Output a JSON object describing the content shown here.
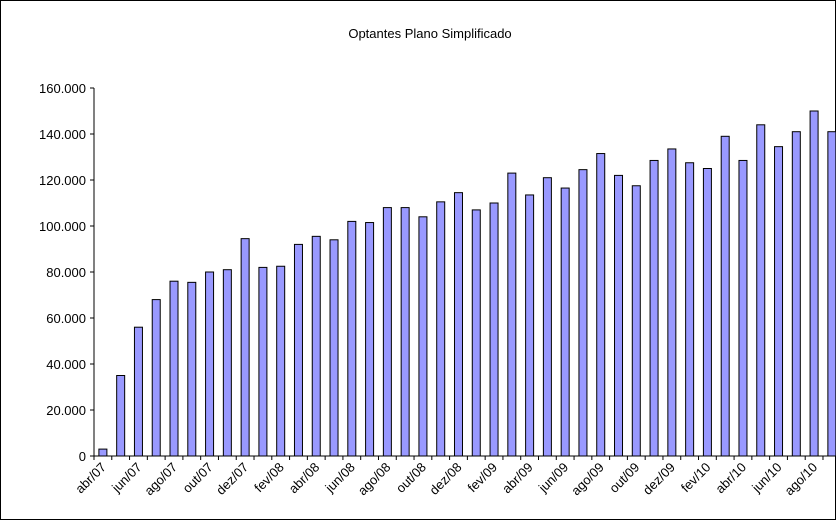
{
  "chart_data": {
    "type": "bar",
    "title": "Optantes Plano Simplificado",
    "categories": [
      "abr/07",
      null,
      "jun/07",
      null,
      "ago/07",
      null,
      "out/07",
      null,
      "dez/07",
      null,
      "fev/08",
      null,
      "abr/08",
      null,
      "jun/08",
      null,
      "ago/08",
      null,
      "out/08",
      null,
      "dez/08",
      null,
      "fev/09",
      null,
      "abr/09",
      null,
      "jun/09",
      null,
      "ago/09",
      null,
      "out/09",
      null,
      "dez/09",
      null,
      "fev/10",
      null,
      "abr/10",
      null,
      "jun/10",
      null,
      "ago/10",
      null
    ],
    "values": [
      3000,
      35000,
      56000,
      68000,
      76000,
      75500,
      80000,
      81000,
      94500,
      82000,
      82500,
      92000,
      95500,
      94000,
      102000,
      101500,
      108000,
      108000,
      104000,
      110500,
      114500,
      107000,
      110000,
      123000,
      113500,
      121000,
      116500,
      124500,
      131500,
      122000,
      117500,
      128500,
      133500,
      127500,
      125000,
      139000,
      128500,
      144000,
      134500,
      141000,
      150000,
      141000
    ],
    "color": "#9999ff",
    "ylim": [
      0,
      160000
    ],
    "yticks": [
      0,
      {
        "value": 20000,
        "label": "20.000"
      },
      {
        "value": 40000,
        "label": "40.000"
      },
      {
        "value": 60000,
        "label": "60.000"
      },
      {
        "value": 80000,
        "label": "80.000"
      },
      {
        "value": 100000,
        "label": "100.000"
      },
      {
        "value": 120000,
        "label": "120.000"
      },
      {
        "value": 140000,
        "label": "140.000"
      },
      {
        "value": 160000,
        "label": "160.000"
      }
    ],
    "grid": false
  }
}
